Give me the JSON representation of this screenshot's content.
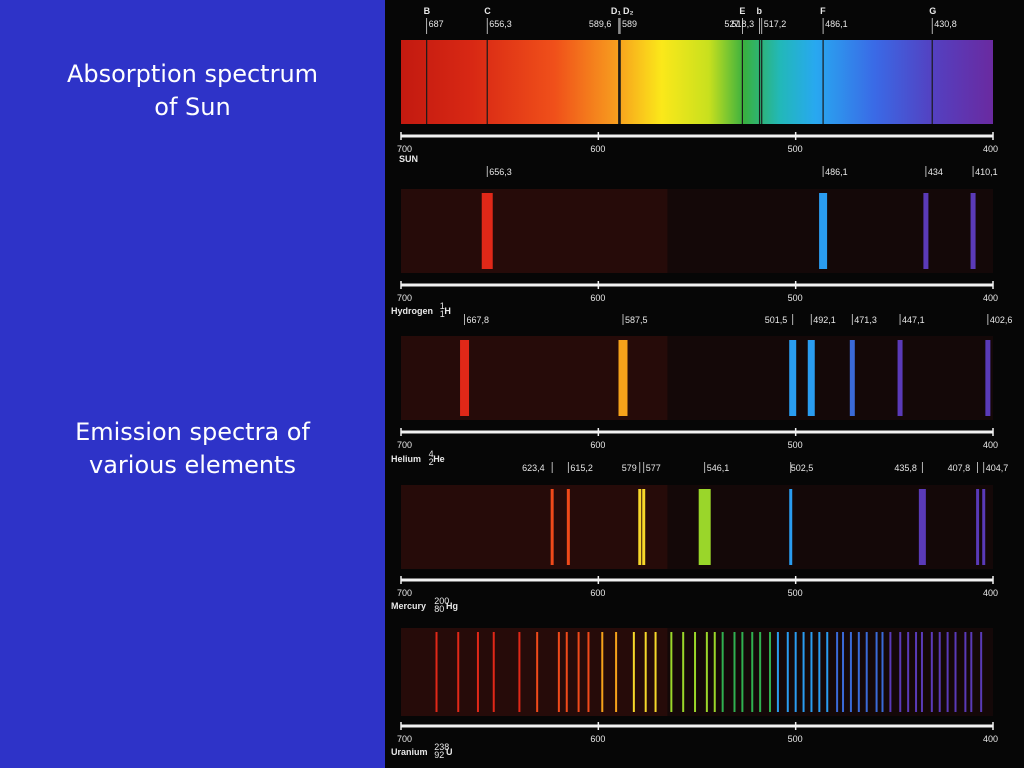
{
  "slide": {
    "title_absorption": [
      "Absorption spectrum",
      "of Sun"
    ],
    "title_emission": [
      "Emission spectra of",
      "various elements"
    ]
  },
  "axis_ticks": [
    "700",
    "600",
    "500",
    "400"
  ],
  "colors": {
    "slide_background": "#2e33c8",
    "panel_background": "#060606"
  },
  "spectra": [
    {
      "name": "SUN",
      "kind": "absorption",
      "fraunhofer": [
        {
          "letter": "B",
          "wl": 687
        },
        {
          "letter": "C",
          "wl": 656.3
        },
        {
          "letter": "D1",
          "wl": 589.6
        },
        {
          "letter": "D2",
          "wl": 589
        },
        {
          "letter": "E",
          "wl": 527
        },
        {
          "letter": "b",
          "wl": 518.3
        },
        {
          "letter": "F",
          "wl": 486.1
        },
        {
          "letter": "G",
          "wl": 430.8
        }
      ],
      "line_labels": [
        "687",
        "656,3",
        "589,6",
        "589",
        "527",
        "518,3",
        "517,2",
        "486,1",
        "430,8"
      ],
      "lines_wl": [
        687,
        656.3,
        589.6,
        589,
        527,
        518.3,
        517.2,
        486.1,
        430.8
      ]
    },
    {
      "name": "Hydrogen",
      "symbol": "H",
      "mass": "1",
      "number": "1",
      "line_labels": [
        "656,3",
        "486,1",
        "434",
        "410,1"
      ],
      "lines_wl": [
        656.3,
        486.1,
        434,
        410.1
      ]
    },
    {
      "name": "Helium",
      "symbol": "He",
      "mass": "4",
      "number": "2",
      "line_labels": [
        "667,8",
        "587,5",
        "501,5",
        "492,1",
        "471,3",
        "447,1",
        "402,6"
      ],
      "lines_wl": [
        667.8,
        587.5,
        501.5,
        492.1,
        471.3,
        447.1,
        402.6
      ]
    },
    {
      "name": "Mercury",
      "symbol": "Hg",
      "mass": "200",
      "number": "80",
      "line_labels": [
        "623,4",
        "615,2",
        "579",
        "577",
        "546,1",
        "502,5",
        "435,8",
        "407,8",
        "404,7"
      ],
      "lines_wl": [
        623.4,
        615.2,
        579,
        577,
        546.1,
        502.5,
        435.8,
        407.8,
        404.7
      ]
    },
    {
      "name": "Uranium",
      "symbol": "U",
      "mass": "238",
      "number": "92",
      "line_labels": [],
      "lines_wl": [
        682,
        671,
        661,
        653,
        640,
        631,
        620,
        616,
        610,
        605,
        598,
        591,
        582,
        576,
        571,
        563,
        557,
        551,
        545,
        541,
        537,
        531,
        527,
        522,
        518,
        513,
        509,
        504,
        500,
        496,
        492,
        488,
        484,
        479,
        476,
        472,
        468,
        464,
        459,
        456,
        452,
        447,
        443,
        439,
        436,
        431,
        427,
        423,
        419,
        414,
        411,
        406
      ]
    }
  ]
}
